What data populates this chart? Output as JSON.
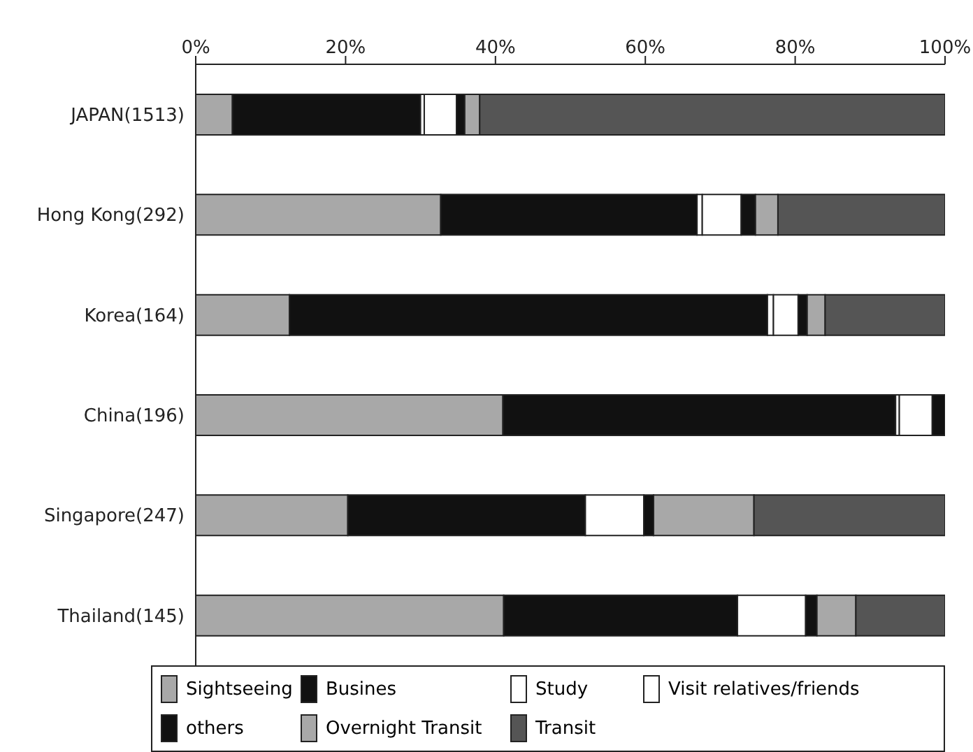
{
  "chart_data": {
    "type": "bar",
    "orientation": "horizontal",
    "stacked": true,
    "categories": [
      "JAPAN(1513)",
      "Hong Kong(292)",
      "Korea(164)",
      "China(196)",
      "Singapore(247)",
      "Thailand(145)"
    ],
    "series": [
      {
        "name": "Sightseeing",
        "color": "#a8a8a8",
        "values": [
          4.9,
          32.7,
          12.5,
          41.0,
          20.3,
          41.1
        ]
      },
      {
        "name": "Busines",
        "color": "#111111",
        "values": [
          25.1,
          34.2,
          63.8,
          52.4,
          31.7,
          31.2
        ]
      },
      {
        "name": "Study",
        "color": "#ffffff",
        "values": [
          0.5,
          0.7,
          0.8,
          0.5,
          0,
          0
        ]
      },
      {
        "name": "Visit relatives/friends",
        "color": "#ffffff",
        "values": [
          4.3,
          5.2,
          3.3,
          4.4,
          7.8,
          9.1
        ]
      },
      {
        "name": "others",
        "color": "#111111",
        "values": [
          1.1,
          1.9,
          1.2,
          1.7,
          1.3,
          1.5
        ]
      },
      {
        "name": "Overnight Transit",
        "color": "#a8a8a8",
        "values": [
          2.0,
          3.0,
          2.4,
          0,
          13.4,
          5.2
        ]
      },
      {
        "name": "Transit",
        "color": "#555555",
        "values": [
          62.1,
          22.3,
          16.0,
          0,
          25.5,
          11.9
        ]
      }
    ],
    "xlim": [
      0,
      100
    ],
    "xticks": [
      {
        "value": 0,
        "label": "0%"
      },
      {
        "value": 20,
        "label": "20%"
      },
      {
        "value": 40,
        "label": "40%"
      },
      {
        "value": 60,
        "label": "60%"
      },
      {
        "value": 80,
        "label": "80%"
      },
      {
        "value": 100,
        "label": "100%"
      }
    ],
    "legend": "bottom"
  }
}
